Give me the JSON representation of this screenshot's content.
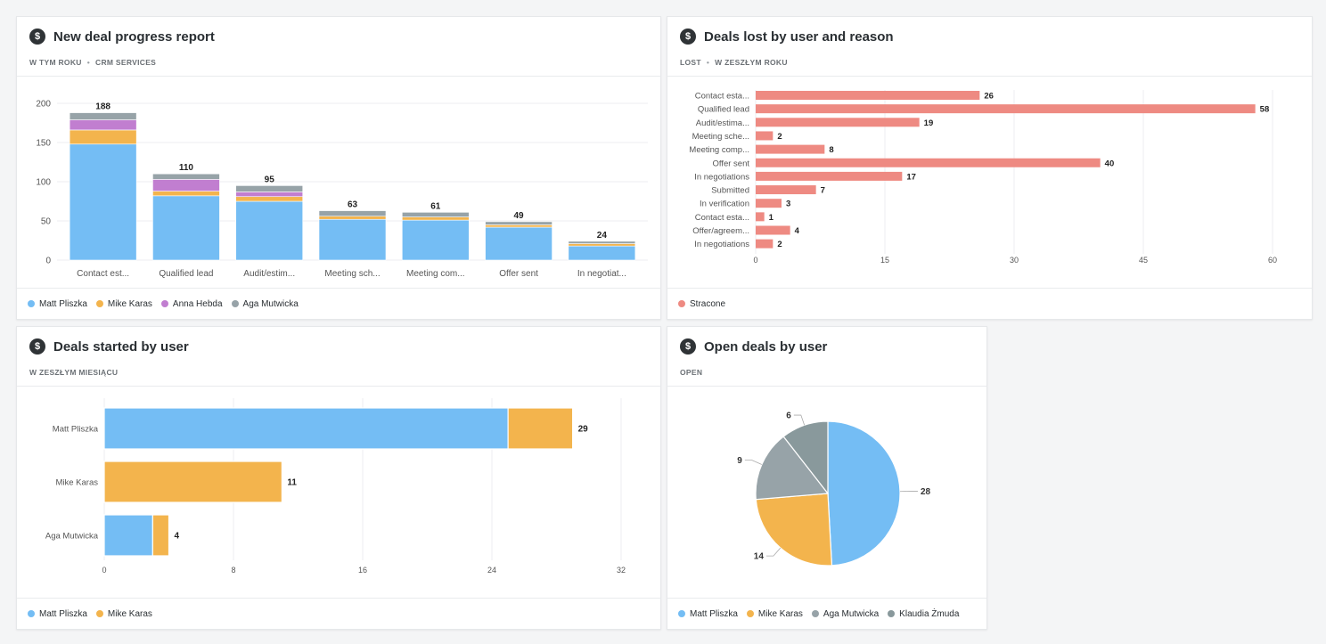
{
  "colors": {
    "matt": "#74bdf4",
    "mike": "#f3b44d",
    "anna": "#c17ed0",
    "aga": "#97a3a8",
    "klaudia": "#89999c",
    "lost": "#ee8a82"
  },
  "cards": {
    "progress": {
      "icon": "dollar-icon",
      "title": "New deal progress report",
      "subtitle_1": "W TYM ROKU",
      "separator": "•",
      "subtitle_2": "CRM SERVICES",
      "legend": [
        "Matt Pliszka",
        "Mike Karas",
        "Anna Hebda",
        "Aga Mutwicka"
      ]
    },
    "lost": {
      "icon": "dollar-icon",
      "title": "Deals lost by user and reason",
      "subtitle_1": "LOST",
      "separator": "•",
      "subtitle_2": "W ZESZŁYM ROKU",
      "legend": [
        "Stracone"
      ]
    },
    "started": {
      "icon": "dollar-icon",
      "title": "Deals started by user",
      "subtitle_1": "W ZESZŁYM MIESIĄCU",
      "legend": [
        "Matt Pliszka",
        "Mike Karas"
      ]
    },
    "open": {
      "icon": "dollar-icon",
      "title": "Open deals by user",
      "subtitle_1": "OPEN",
      "legend": [
        "Matt Pliszka",
        "Mike Karas",
        "Aga Mutwicka",
        "Klaudia Żmuda"
      ]
    }
  },
  "chart_data": [
    {
      "type": "bar",
      "stacked": true,
      "title": "New deal progress report",
      "categories": [
        "Contact est...",
        "Qualified lead",
        "Audit/estim...",
        "Meeting sch...",
        "Meeting com...",
        "Offer sent",
        "In negotiat..."
      ],
      "totals": [
        188,
        110,
        95,
        63,
        61,
        49,
        24
      ],
      "series": [
        {
          "name": "Matt Pliszka",
          "values": [
            148,
            82,
            75,
            52,
            51,
            42,
            18
          ]
        },
        {
          "name": "Mike Karas",
          "values": [
            18,
            6,
            6,
            4,
            4,
            3,
            3
          ]
        },
        {
          "name": "Anna Hebda",
          "values": [
            13,
            15,
            6,
            0,
            0,
            0,
            0
          ]
        },
        {
          "name": "Aga Mutwicka",
          "values": [
            9,
            7,
            8,
            7,
            6,
            4,
            3
          ]
        }
      ],
      "y_ticks": [
        0,
        50,
        100,
        150,
        200
      ],
      "ylim": [
        0,
        200
      ],
      "grid": true,
      "legend_position": "bottom-left"
    },
    {
      "type": "bar",
      "orientation": "horizontal",
      "title": "Deals lost by user and reason",
      "categories": [
        "Contact esta...",
        "Qualified lead",
        "Audit/estima...",
        "Meeting sche...",
        "Meeting comp...",
        "Offer sent",
        "In negotiations",
        "Submitted",
        "In verification",
        "Contact esta...",
        "Offer/agreem...",
        "In negotiations"
      ],
      "series": [
        {
          "name": "Stracone",
          "values": [
            26,
            58,
            19,
            2,
            8,
            40,
            17,
            7,
            3,
            1,
            4,
            2
          ]
        }
      ],
      "x_ticks": [
        0,
        15,
        30,
        45,
        60
      ],
      "xlim": [
        0,
        60
      ],
      "grid": true,
      "legend_position": "bottom-left"
    },
    {
      "type": "bar",
      "orientation": "horizontal",
      "stacked": true,
      "title": "Deals started by user",
      "categories": [
        "Matt Pliszka",
        "Mike Karas",
        "Aga Mutwicka"
      ],
      "totals": [
        29,
        11,
        4
      ],
      "series": [
        {
          "name": "Matt Pliszka",
          "values": [
            25,
            0,
            3
          ]
        },
        {
          "name": "Mike Karas",
          "values": [
            4,
            11,
            1
          ]
        }
      ],
      "x_ticks": [
        0,
        8,
        16,
        24,
        32
      ],
      "xlim": [
        0,
        32
      ],
      "grid": true,
      "legend_position": "bottom-left"
    },
    {
      "type": "pie",
      "title": "Open deals by user",
      "categories": [
        "Matt Pliszka",
        "Mike Karas",
        "Aga Mutwicka",
        "Klaudia Żmuda"
      ],
      "values": [
        28,
        14,
        9,
        6
      ],
      "legend_position": "bottom-left"
    }
  ]
}
